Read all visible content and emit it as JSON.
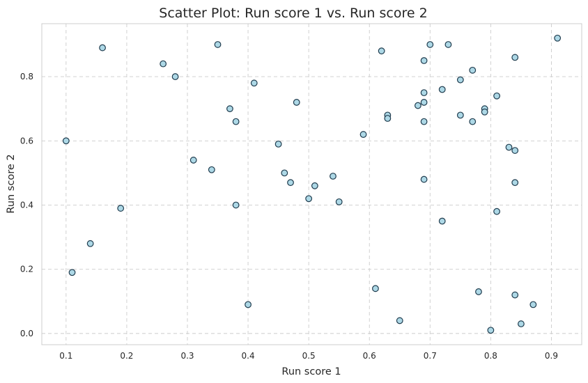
{
  "chart_data": {
    "type": "scatter",
    "title": "Scatter Plot: Run score 1 vs. Run score 2",
    "xlabel": "Run score 1",
    "ylabel": "Run score 2",
    "xlim": [
      0.06,
      0.95
    ],
    "ylim": [
      -0.035,
      0.965
    ],
    "xticks": [
      "0.1",
      "0.2",
      "0.3",
      "0.4",
      "0.5",
      "0.6",
      "0.7",
      "0.8",
      "0.9"
    ],
    "yticks": [
      "0.0",
      "0.2",
      "0.4",
      "0.6",
      "0.8"
    ],
    "grid": true,
    "colors": {
      "fill": "#add8e6",
      "edge": "#1f3b4d",
      "grid": "#cccccc"
    },
    "points": [
      {
        "x": 0.1,
        "y": 0.6
      },
      {
        "x": 0.11,
        "y": 0.19
      },
      {
        "x": 0.14,
        "y": 0.28
      },
      {
        "x": 0.16,
        "y": 0.89
      },
      {
        "x": 0.19,
        "y": 0.39
      },
      {
        "x": 0.26,
        "y": 0.84
      },
      {
        "x": 0.28,
        "y": 0.8
      },
      {
        "x": 0.31,
        "y": 0.54
      },
      {
        "x": 0.34,
        "y": 0.51
      },
      {
        "x": 0.35,
        "y": 0.9
      },
      {
        "x": 0.37,
        "y": 0.7
      },
      {
        "x": 0.38,
        "y": 0.66
      },
      {
        "x": 0.38,
        "y": 0.4
      },
      {
        "x": 0.4,
        "y": 0.09
      },
      {
        "x": 0.41,
        "y": 0.78
      },
      {
        "x": 0.45,
        "y": 0.59
      },
      {
        "x": 0.46,
        "y": 0.5
      },
      {
        "x": 0.47,
        "y": 0.47
      },
      {
        "x": 0.48,
        "y": 0.72
      },
      {
        "x": 0.5,
        "y": 0.42
      },
      {
        "x": 0.51,
        "y": 0.46
      },
      {
        "x": 0.54,
        "y": 0.49
      },
      {
        "x": 0.55,
        "y": 0.41
      },
      {
        "x": 0.59,
        "y": 0.62
      },
      {
        "x": 0.61,
        "y": 0.14
      },
      {
        "x": 0.62,
        "y": 0.88
      },
      {
        "x": 0.63,
        "y": 0.68
      },
      {
        "x": 0.63,
        "y": 0.67
      },
      {
        "x": 0.65,
        "y": 0.04
      },
      {
        "x": 0.68,
        "y": 0.71
      },
      {
        "x": 0.69,
        "y": 0.85
      },
      {
        "x": 0.69,
        "y": 0.75
      },
      {
        "x": 0.69,
        "y": 0.72
      },
      {
        "x": 0.69,
        "y": 0.66
      },
      {
        "x": 0.69,
        "y": 0.48
      },
      {
        "x": 0.7,
        "y": 0.9
      },
      {
        "x": 0.72,
        "y": 0.76
      },
      {
        "x": 0.72,
        "y": 0.35
      },
      {
        "x": 0.73,
        "y": 0.9
      },
      {
        "x": 0.75,
        "y": 0.79
      },
      {
        "x": 0.75,
        "y": 0.68
      },
      {
        "x": 0.77,
        "y": 0.82
      },
      {
        "x": 0.77,
        "y": 0.66
      },
      {
        "x": 0.78,
        "y": 0.13
      },
      {
        "x": 0.79,
        "y": 0.7
      },
      {
        "x": 0.79,
        "y": 0.69
      },
      {
        "x": 0.8,
        "y": 0.01
      },
      {
        "x": 0.81,
        "y": 0.74
      },
      {
        "x": 0.81,
        "y": 0.38
      },
      {
        "x": 0.83,
        "y": 0.58
      },
      {
        "x": 0.84,
        "y": 0.86
      },
      {
        "x": 0.84,
        "y": 0.57
      },
      {
        "x": 0.84,
        "y": 0.47
      },
      {
        "x": 0.84,
        "y": 0.12
      },
      {
        "x": 0.85,
        "y": 0.03
      },
      {
        "x": 0.87,
        "y": 0.09
      },
      {
        "x": 0.91,
        "y": 0.92
      }
    ]
  }
}
